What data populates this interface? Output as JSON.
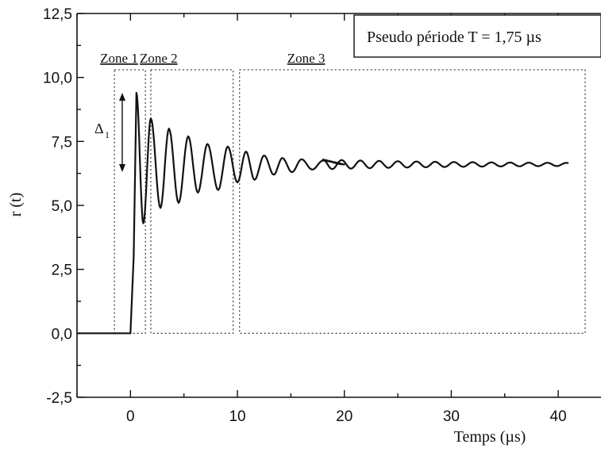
{
  "chart_data": {
    "type": "line",
    "xlabel": "Temps (µs)",
    "ylabel": "r (t)",
    "xlim": [
      -5,
      44
    ],
    "ylim": [
      -2.5,
      12.5
    ],
    "x_ticks": [
      0,
      10,
      20,
      30,
      40
    ],
    "x_tick_labels": [
      "0",
      "10",
      "20",
      "30",
      "40"
    ],
    "y_ticks": [
      -2.5,
      0,
      2.5,
      5,
      7.5,
      10,
      12.5
    ],
    "y_tick_labels": [
      "-2,5",
      "0,0",
      "2,5",
      "5,0",
      "7,5",
      "10,0",
      "12,5"
    ],
    "annotation": "Pseudo période T = 1,75 µs",
    "delta_label": "Δ",
    "delta_subscript": "1",
    "delta_range": [
      6.3,
      9.4
    ],
    "series": [
      {
        "x": [
          -5,
          0,
          0.3,
          0.55,
          1.2,
          1.9,
          2.8,
          3.6,
          4.5,
          5.4,
          6.3,
          7.2,
          8.2,
          9.1,
          10.0,
          10.8,
          11.6,
          12.5,
          13.4,
          14.2,
          15.1,
          16.0,
          17.0,
          18.0,
          20,
          25,
          30,
          35,
          41
        ],
        "y": [
          0,
          0,
          3.0,
          9.4,
          4.3,
          8.4,
          4.9,
          8.0,
          5.1,
          7.7,
          5.5,
          7.4,
          5.6,
          7.3,
          5.9,
          7.1,
          6.0,
          6.95,
          6.2,
          6.85,
          6.3,
          6.8,
          6.4,
          6.75,
          6.6,
          6.58,
          6.6,
          6.6,
          6.6
        ]
      }
    ],
    "zones": [
      {
        "label": "Zone 1",
        "x": [
          -1.5,
          1.4
        ],
        "y": [
          0,
          10.3
        ]
      },
      {
        "label": "Zone 2",
        "x": [
          1.9,
          9.6
        ],
        "y": [
          0,
          10.3
        ]
      },
      {
        "label": "Zone 3",
        "x": [
          10.2,
          43.0
        ],
        "y": [
          0,
          10.3
        ]
      }
    ]
  }
}
